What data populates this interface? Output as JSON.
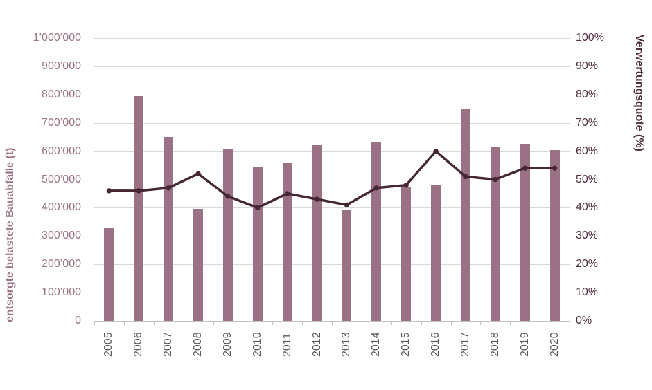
{
  "chart_data": {
    "type": "bar",
    "subtype": "combo-bar-line-dual-axis",
    "title": "",
    "categories": [
      "2005",
      "2006",
      "2007",
      "2008",
      "2009",
      "2010",
      "2011",
      "2012",
      "2013",
      "2014",
      "2015",
      "2016",
      "2017",
      "2018",
      "2019",
      "2020"
    ],
    "series": [
      {
        "name": "entsorgte belastete Bauabfälle (t)",
        "type": "bar",
        "axis": "left",
        "color": "#9b7285",
        "values": [
          330000,
          795000,
          650000,
          395000,
          610000,
          545000,
          560000,
          620000,
          390000,
          630000,
          475000,
          480000,
          750000,
          615000,
          625000,
          605000
        ]
      },
      {
        "name": "Verwertungsquote (%)",
        "type": "line",
        "axis": "right",
        "color": "#452734",
        "marker": "circle",
        "values": [
          46,
          46,
          47,
          52,
          44,
          40,
          45,
          43,
          41,
          47,
          48,
          60,
          51,
          50,
          54,
          54
        ]
      }
    ],
    "left_axis": {
      "title": "entsorgte belastete Bauabfälle (t)",
      "min": 0,
      "max": 1000000,
      "step": 100000,
      "tick_labels": [
        "1’000’000",
        "900’000",
        "800’000",
        "700’000",
        "600’000",
        "500’000",
        "400’000",
        "300’000",
        "200’000",
        "100’000",
        "0"
      ],
      "label_color": "#9b7286",
      "title_color": "#9b7286"
    },
    "right_axis": {
      "title": "Verwertungsquote (%)",
      "min": 0,
      "max": 100,
      "step": 10,
      "tick_labels": [
        "100%",
        "90%",
        "80%",
        "70%",
        "60%",
        "50%",
        "40%",
        "30%",
        "20%",
        "10%",
        "0%"
      ],
      "label_color": "#512e40",
      "title_color": "#512e40"
    },
    "x_axis": {
      "label_color": "#595959",
      "label_rotation": -90
    },
    "grid": true,
    "gridline_color": "#d9d9d9",
    "legend": "none",
    "background_color": "#ffffff"
  }
}
